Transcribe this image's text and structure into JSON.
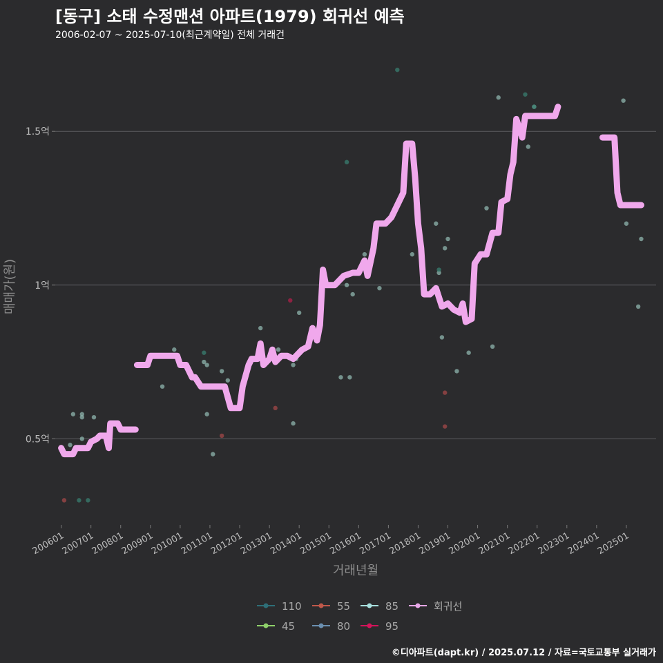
{
  "title": "[동구] 소태 수정맨션 아파트(1979) 회귀선 예측",
  "subtitle": "2006-02-07 ~ 2025-07-10(최근계약일) 전체 거래건",
  "footer": "©디아파트(dapt.kr) / 2025.07.12 / 자료=국토교통부 실거래가",
  "chart_data": {
    "type": "scatter",
    "xlabel": "거래년월",
    "ylabel": "매매가(원)",
    "x_unit": "fractional year",
    "xlim": [
      2005.8,
      2026.0
    ],
    "ylim": [
      0.22,
      1.77
    ],
    "y_unit": "억원",
    "y_ticks": [
      {
        "value": 0.5,
        "label": "0.5억"
      },
      {
        "value": 1.0,
        "label": "1억"
      },
      {
        "value": 1.5,
        "label": "1.5억"
      }
    ],
    "x_ticks": [
      {
        "value": 2006.0,
        "label": "200601"
      },
      {
        "value": 2007.0,
        "label": "200701"
      },
      {
        "value": 2008.0,
        "label": "200801"
      },
      {
        "value": 2009.0,
        "label": "200901"
      },
      {
        "value": 2010.0,
        "label": "201001"
      },
      {
        "value": 2011.0,
        "label": "201101"
      },
      {
        "value": 2012.0,
        "label": "201201"
      },
      {
        "value": 2013.0,
        "label": "201301"
      },
      {
        "value": 2014.0,
        "label": "201401"
      },
      {
        "value": 2015.0,
        "label": "201501"
      },
      {
        "value": 2016.0,
        "label": "201601"
      },
      {
        "value": 2017.0,
        "label": "201701"
      },
      {
        "value": 2018.0,
        "label": "201801"
      },
      {
        "value": 2019.0,
        "label": "201901"
      },
      {
        "value": 2020.0,
        "label": "202001"
      },
      {
        "value": 2021.0,
        "label": "202101"
      },
      {
        "value": 2022.0,
        "label": "202201"
      },
      {
        "value": 2023.0,
        "label": "202301"
      },
      {
        "value": 2024.0,
        "label": "202401"
      },
      {
        "value": 2025.0,
        "label": "202501"
      }
    ],
    "legend": {
      "placement": "bottom",
      "entries": [
        {
          "label": "110",
          "color": "#2e6f78"
        },
        {
          "label": "55",
          "color": "#c0584a"
        },
        {
          "label": "85",
          "color": "#a8e0df"
        },
        {
          "label": "회귀선",
          "color": "#e8a8e8"
        },
        {
          "label": "45",
          "color": "#8fd16a"
        },
        {
          "label": "80",
          "color": "#6a8fb0"
        },
        {
          "label": "95",
          "color": "#d4145a"
        }
      ]
    },
    "series": [
      {
        "name": "85",
        "color": "#8fb5ad",
        "points": [
          [
            2006.3,
            0.48
          ],
          [
            2006.4,
            0.58
          ],
          [
            2006.7,
            0.58
          ],
          [
            2006.7,
            0.57
          ],
          [
            2006.7,
            0.5
          ],
          [
            2007.1,
            0.57
          ],
          [
            2009.4,
            0.67
          ],
          [
            2009.8,
            0.79
          ],
          [
            2010.8,
            0.75
          ],
          [
            2010.9,
            0.74
          ],
          [
            2010.9,
            0.58
          ],
          [
            2011.1,
            0.45
          ],
          [
            2011.4,
            0.72
          ],
          [
            2011.6,
            0.69
          ],
          [
            2012.7,
            0.86
          ],
          [
            2013.3,
            0.79
          ],
          [
            2013.8,
            0.74
          ],
          [
            2013.8,
            0.55
          ],
          [
            2013.9,
            0.76
          ],
          [
            2014.0,
            0.91
          ],
          [
            2015.4,
            0.7
          ],
          [
            2015.7,
            0.7
          ],
          [
            2015.6,
            1.0
          ],
          [
            2015.8,
            0.97
          ],
          [
            2016.2,
            1.1
          ],
          [
            2016.7,
            0.99
          ],
          [
            2017.8,
            1.1
          ],
          [
            2018.6,
            1.2
          ],
          [
            2018.7,
            1.04
          ],
          [
            2018.8,
            0.83
          ],
          [
            2018.9,
            1.12
          ],
          [
            2019.0,
            1.15
          ],
          [
            2019.3,
            0.72
          ],
          [
            2019.7,
            0.78
          ],
          [
            2020.3,
            1.25
          ],
          [
            2020.5,
            0.8
          ],
          [
            2020.7,
            1.61
          ],
          [
            2021.7,
            1.45
          ],
          [
            2021.9,
            1.58
          ],
          [
            2024.9,
            1.6
          ],
          [
            2025.0,
            1.2
          ],
          [
            2025.4,
            0.93
          ],
          [
            2025.5,
            1.15
          ]
        ]
      },
      {
        "name": "110",
        "color": "#3a7f70",
        "points": [
          [
            2006.6,
            0.3
          ],
          [
            2006.9,
            0.3
          ],
          [
            2010.8,
            0.78
          ],
          [
            2015.6,
            1.4
          ],
          [
            2017.3,
            1.7
          ],
          [
            2021.6,
            1.62
          ],
          [
            2021.9,
            1.58
          ],
          [
            2018.7,
            1.05
          ]
        ]
      },
      {
        "name": "55",
        "color": "#a34848",
        "points": [
          [
            2006.1,
            0.3
          ],
          [
            2011.4,
            0.51
          ],
          [
            2013.2,
            0.6
          ],
          [
            2018.9,
            0.65
          ],
          [
            2018.9,
            0.54
          ]
        ]
      },
      {
        "name": "95",
        "color": "#b0204a",
        "points": [
          [
            2013.7,
            0.95
          ]
        ]
      }
    ],
    "regression_line": {
      "name": "회귀선",
      "color": "#f0a8ec",
      "segments": [
        [
          [
            2006.0,
            0.47
          ],
          [
            2006.1,
            0.45
          ],
          [
            2006.4,
            0.45
          ],
          [
            2006.5,
            0.47
          ],
          [
            2006.9,
            0.47
          ],
          [
            2007.0,
            0.49
          ],
          [
            2007.2,
            0.5
          ],
          [
            2007.3,
            0.51
          ],
          [
            2007.5,
            0.51
          ],
          [
            2007.6,
            0.47
          ],
          [
            2007.65,
            0.55
          ],
          [
            2007.9,
            0.55
          ],
          [
            2008.0,
            0.53
          ],
          [
            2008.5,
            0.53
          ]
        ],
        [
          [
            2008.55,
            0.74
          ],
          [
            2008.9,
            0.74
          ],
          [
            2009.0,
            0.77
          ],
          [
            2009.7,
            0.77
          ],
          [
            2009.9,
            0.77
          ],
          [
            2010.0,
            0.74
          ],
          [
            2010.2,
            0.74
          ],
          [
            2010.4,
            0.7
          ],
          [
            2010.5,
            0.7
          ],
          [
            2010.7,
            0.67
          ],
          [
            2011.0,
            0.67
          ],
          [
            2011.5,
            0.67
          ],
          [
            2011.7,
            0.6
          ],
          [
            2012.0,
            0.6
          ],
          [
            2012.1,
            0.67
          ],
          [
            2012.3,
            0.74
          ],
          [
            2012.4,
            0.76
          ],
          [
            2012.6,
            0.76
          ],
          [
            2012.7,
            0.81
          ],
          [
            2012.8,
            0.74
          ],
          [
            2013.0,
            0.76
          ],
          [
            2013.1,
            0.79
          ],
          [
            2013.2,
            0.75
          ],
          [
            2013.4,
            0.77
          ],
          [
            2013.6,
            0.77
          ],
          [
            2013.8,
            0.76
          ],
          [
            2014.1,
            0.79
          ],
          [
            2014.3,
            0.8
          ],
          [
            2014.45,
            0.86
          ],
          [
            2014.6,
            0.82
          ],
          [
            2014.7,
            0.87
          ],
          [
            2014.8,
            1.05
          ],
          [
            2014.9,
            1.0
          ],
          [
            2015.2,
            1.0
          ],
          [
            2015.5,
            1.03
          ],
          [
            2015.8,
            1.04
          ],
          [
            2016.0,
            1.04
          ],
          [
            2016.2,
            1.08
          ],
          [
            2016.3,
            1.03
          ],
          [
            2016.5,
            1.12
          ],
          [
            2016.6,
            1.2
          ],
          [
            2016.9,
            1.2
          ],
          [
            2017.1,
            1.22
          ],
          [
            2017.3,
            1.26
          ],
          [
            2017.5,
            1.3
          ],
          [
            2017.6,
            1.46
          ],
          [
            2017.8,
            1.46
          ],
          [
            2017.9,
            1.35
          ],
          [
            2018.0,
            1.2
          ],
          [
            2018.1,
            1.12
          ],
          [
            2018.2,
            0.97
          ],
          [
            2018.4,
            0.97
          ],
          [
            2018.6,
            0.99
          ],
          [
            2018.8,
            0.93
          ],
          [
            2019.0,
            0.94
          ],
          [
            2019.2,
            0.92
          ],
          [
            2019.4,
            0.91
          ],
          [
            2019.5,
            0.94
          ],
          [
            2019.6,
            0.88
          ],
          [
            2019.8,
            0.89
          ],
          [
            2019.9,
            1.07
          ],
          [
            2020.1,
            1.1
          ],
          [
            2020.3,
            1.1
          ],
          [
            2020.5,
            1.17
          ],
          [
            2020.7,
            1.17
          ],
          [
            2020.8,
            1.27
          ],
          [
            2021.0,
            1.28
          ],
          [
            2021.1,
            1.36
          ],
          [
            2021.2,
            1.4
          ],
          [
            2021.3,
            1.54
          ],
          [
            2021.5,
            1.48
          ],
          [
            2021.6,
            1.55
          ],
          [
            2021.9,
            1.55
          ],
          [
            2022.4,
            1.55
          ],
          [
            2022.6,
            1.55
          ],
          [
            2022.7,
            1.58
          ]
        ],
        [
          [
            2024.2,
            1.48
          ],
          [
            2024.6,
            1.48
          ],
          [
            2024.7,
            1.3
          ],
          [
            2024.8,
            1.26
          ],
          [
            2025.5,
            1.26
          ]
        ]
      ]
    }
  }
}
